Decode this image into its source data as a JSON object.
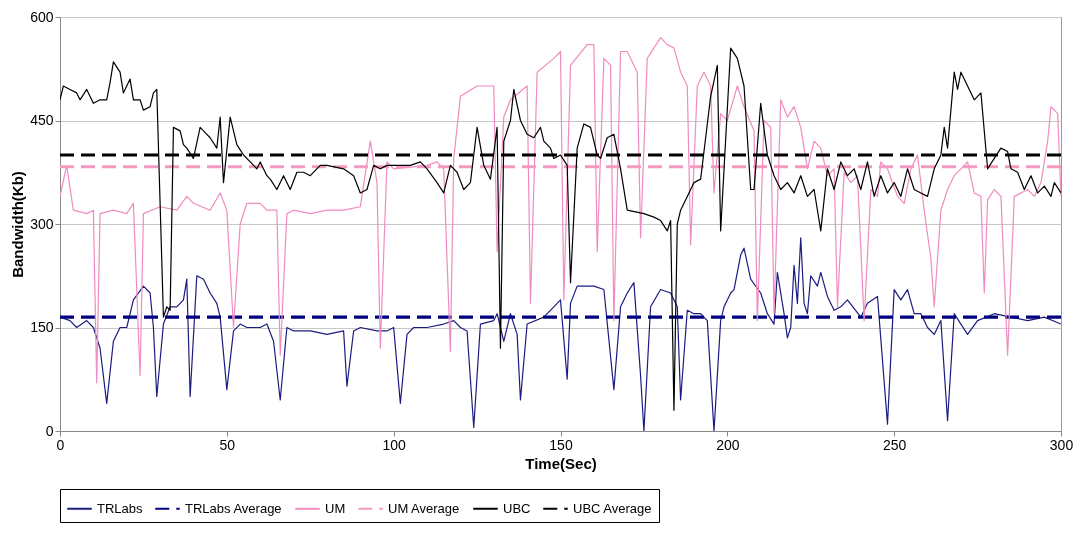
{
  "chart_data": {
    "type": "line",
    "xlabel": "Time(Sec)",
    "ylabel": "Bandwidth(Kb)",
    "xlim": [
      0,
      300
    ],
    "xticks": [
      0,
      50,
      100,
      150,
      200,
      250,
      300
    ],
    "ylim": [
      0,
      600
    ],
    "yticks": [
      0,
      150,
      300,
      450,
      600
    ],
    "grid": "y",
    "legend": "bottom",
    "series": [
      {
        "name": "TRLabs",
        "color": "#1c1c80",
        "line_style": "solid",
        "x": [
          0,
          3,
          5,
          8,
          10,
          12,
          14,
          16,
          18,
          20,
          22,
          25,
          27,
          28,
          29,
          31,
          33,
          35,
          37,
          38,
          39,
          41,
          43,
          45,
          47,
          48,
          50,
          52,
          54,
          56,
          58,
          60,
          62,
          64,
          66,
          68,
          70,
          75,
          80,
          85,
          86,
          88,
          90,
          95,
          98,
          100,
          102,
          104,
          106,
          110,
          115,
          118,
          120,
          122,
          124,
          126,
          130,
          131,
          133,
          135,
          137,
          138,
          140,
          145,
          148,
          150,
          152,
          153,
          155,
          160,
          163,
          166,
          168,
          170,
          172,
          174,
          175,
          177,
          180,
          183,
          185,
          186,
          188,
          190,
          192,
          194,
          196,
          198,
          199,
          200,
          201,
          202,
          204,
          205,
          207,
          210,
          212,
          214,
          215,
          217,
          218,
          219,
          220,
          221,
          222,
          223,
          224,
          225,
          227,
          228,
          230,
          232,
          234,
          236,
          240,
          242,
          245,
          248,
          250,
          252,
          254,
          256,
          258,
          260,
          262,
          264,
          266,
          268,
          270,
          272,
          275,
          280,
          285,
          290,
          295,
          300
        ],
        "values": [
          165,
          160,
          150,
          160,
          150,
          120,
          40,
          130,
          150,
          150,
          190,
          210,
          200,
          150,
          50,
          155,
          180,
          180,
          190,
          220,
          50,
          225,
          220,
          200,
          185,
          165,
          60,
          145,
          155,
          150,
          150,
          150,
          155,
          130,
          45,
          150,
          145,
          145,
          140,
          145,
          65,
          145,
          150,
          145,
          145,
          150,
          40,
          140,
          150,
          150,
          155,
          160,
          150,
          145,
          5,
          155,
          160,
          170,
          130,
          170,
          140,
          45,
          155,
          165,
          180,
          190,
          75,
          185,
          210,
          210,
          205,
          60,
          180,
          200,
          215,
          80,
          0,
          180,
          205,
          200,
          180,
          45,
          175,
          170,
          170,
          160,
          0,
          160,
          180,
          190,
          200,
          205,
          255,
          265,
          220,
          200,
          170,
          155,
          230,
          170,
          135,
          150,
          240,
          185,
          280,
          185,
          170,
          225,
          210,
          230,
          195,
          175,
          180,
          190,
          165,
          185,
          195,
          10,
          205,
          190,
          205,
          170,
          170,
          150,
          140,
          160,
          15,
          170,
          155,
          140,
          160,
          170,
          165,
          160,
          165,
          155
        ]
      },
      {
        "name": "TRLabs Average",
        "color": "#000080",
        "line_style": "dashed",
        "x": [
          0,
          300
        ],
        "values": [
          165,
          165
        ]
      },
      {
        "name": "UM",
        "color": "#f08cc0",
        "line_style": "solid",
        "x": [
          0,
          2,
          4,
          8,
          10,
          11,
          12,
          16,
          20,
          22,
          24,
          25,
          30,
          35,
          38,
          40,
          45,
          48,
          50,
          52,
          54,
          56,
          60,
          62,
          65,
          66,
          68,
          70,
          75,
          80,
          85,
          90,
          93,
          95,
          96,
          98,
          100,
          110,
          113,
          115,
          117,
          118,
          120,
          125,
          130,
          131,
          133,
          135,
          140,
          141,
          143,
          148,
          150,
          151,
          153,
          158,
          160,
          161,
          163,
          165,
          166,
          168,
          170,
          173,
          174,
          176,
          180,
          182,
          184,
          186,
          188,
          189,
          191,
          193,
          195,
          196,
          198,
          200,
          203,
          205,
          208,
          209,
          211,
          213,
          214,
          216,
          218,
          220,
          222,
          224,
          226,
          228,
          230,
          232,
          233,
          235,
          237,
          239,
          241,
          243,
          245,
          246,
          248,
          251,
          253,
          255,
          257,
          259,
          261,
          262,
          264,
          266,
          268,
          270,
          272,
          274,
          276,
          277,
          278,
          280,
          282,
          284,
          286,
          290,
          292,
          294,
          296,
          297,
          299,
          300
        ],
        "values": [
          340,
          385,
          320,
          315,
          320,
          70,
          315,
          320,
          315,
          330,
          80,
          315,
          325,
          320,
          340,
          330,
          320,
          345,
          320,
          150,
          300,
          330,
          330,
          320,
          320,
          110,
          315,
          320,
          315,
          320,
          320,
          325,
          420,
          360,
          120,
          390,
          380,
          385,
          390,
          380,
          115,
          395,
          485,
          500,
          500,
          260,
          455,
          480,
          500,
          185,
          520,
          540,
          550,
          190,
          530,
          560,
          560,
          260,
          540,
          530,
          160,
          550,
          550,
          520,
          280,
          540,
          570,
          560,
          555,
          520,
          500,
          270,
          500,
          520,
          500,
          345,
          460,
          450,
          500,
          470,
          435,
          160,
          450,
          440,
          170,
          480,
          455,
          470,
          440,
          380,
          420,
          410,
          370,
          380,
          180,
          375,
          360,
          370,
          160,
          350,
          340,
          390,
          380,
          340,
          330,
          380,
          400,
          320,
          250,
          180,
          320,
          350,
          370,
          380,
          390,
          345,
          340,
          200,
          335,
          350,
          340,
          110,
          340,
          350,
          340,
          360,
          420,
          470,
          460,
          340
        ]
      },
      {
        "name": "UM Average",
        "color": "#f49ac1",
        "line_style": "dashed",
        "x": [
          0,
          300
        ],
        "values": [
          383,
          383
        ]
      },
      {
        "name": "UBC",
        "color": "#000000",
        "line_style": "solid",
        "x": [
          0,
          1,
          3,
          5,
          6,
          8,
          10,
          12,
          14,
          15,
          16,
          18,
          19,
          21,
          22,
          24,
          25,
          27,
          28,
          29,
          31,
          32,
          33,
          34,
          36,
          37,
          38,
          40,
          42,
          44,
          45,
          47,
          48,
          49,
          51,
          53,
          55,
          57,
          59,
          60,
          62,
          63,
          65,
          67,
          69,
          71,
          73,
          75,
          78,
          80,
          85,
          88,
          90,
          92,
          94,
          96,
          98,
          100,
          105,
          108,
          110,
          113,
          115,
          117,
          119,
          121,
          123,
          125,
          127,
          129,
          131,
          132,
          133,
          135,
          136,
          138,
          140,
          142,
          144,
          145,
          147,
          148,
          150,
          152,
          153,
          155,
          157,
          159,
          161,
          162,
          164,
          166,
          168,
          170,
          175,
          178,
          180,
          182,
          183,
          184,
          185,
          186,
          188,
          190,
          192,
          193,
          195,
          197,
          198,
          201,
          203,
          205,
          207,
          208,
          210,
          212,
          214,
          216,
          218,
          220,
          222,
          224,
          226,
          228,
          230,
          232,
          234,
          236,
          238,
          240,
          242,
          244,
          246,
          248,
          250,
          252,
          254,
          256,
          258,
          260,
          262,
          264,
          265,
          266,
          268,
          269,
          270,
          272,
          274,
          276,
          278,
          280,
          282,
          284,
          285,
          287,
          289,
          291,
          293,
          295,
          297,
          298,
          300
        ],
        "values": [
          480,
          500,
          495,
          490,
          480,
          495,
          475,
          480,
          480,
          505,
          535,
          520,
          490,
          510,
          480,
          480,
          465,
          470,
          490,
          495,
          165,
          180,
          175,
          440,
          435,
          415,
          410,
          395,
          440,
          430,
          425,
          410,
          455,
          360,
          455,
          415,
          400,
          390,
          380,
          390,
          370,
          365,
          350,
          370,
          350,
          375,
          375,
          370,
          385,
          385,
          380,
          370,
          345,
          350,
          385,
          380,
          385,
          385,
          385,
          390,
          380,
          360,
          345,
          385,
          375,
          350,
          360,
          440,
          385,
          365,
          440,
          120,
          420,
          450,
          495,
          450,
          430,
          425,
          440,
          420,
          410,
          395,
          400,
          385,
          215,
          410,
          445,
          440,
          400,
          395,
          425,
          430,
          380,
          320,
          315,
          310,
          305,
          290,
          305,
          30,
          300,
          320,
          340,
          360,
          365,
          405,
          485,
          530,
          290,
          555,
          540,
          500,
          350,
          350,
          475,
          400,
          370,
          350,
          360,
          345,
          370,
          340,
          350,
          290,
          380,
          350,
          390,
          370,
          380,
          350,
          390,
          340,
          370,
          345,
          360,
          340,
          380,
          350,
          345,
          340,
          380,
          400,
          440,
          410,
          520,
          495,
          520,
          500,
          480,
          490,
          380,
          395,
          410,
          405,
          380,
          375,
          350,
          370,
          345,
          355,
          340,
          360,
          345
        ]
      },
      {
        "name": "UBC Average",
        "color": "#000000",
        "line_style": "dashed",
        "x": [
          0,
          300
        ],
        "values": [
          400,
          400
        ]
      }
    ]
  }
}
